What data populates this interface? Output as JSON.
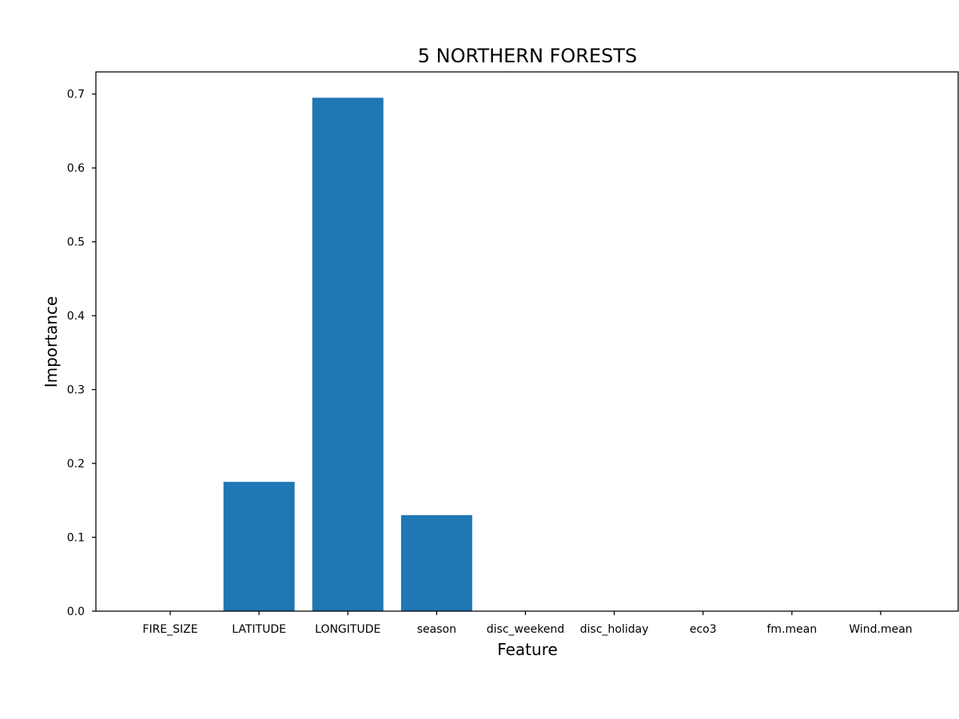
{
  "chart_data": {
    "type": "bar",
    "title": "5  NORTHERN FORESTS",
    "xlabel": "Feature",
    "ylabel": "Importance",
    "categories": [
      "FIRE_SIZE",
      "LATITUDE",
      "LONGITUDE",
      "season",
      "disc_weekend",
      "disc_holiday",
      "eco3",
      "fm.mean",
      "Wind.mean"
    ],
    "values": [
      0.0,
      0.175,
      0.695,
      0.13,
      0.0,
      0.0,
      0.0,
      0.0,
      0.0
    ],
    "ylim": [
      0,
      0.73
    ],
    "yticks": [
      0.0,
      0.1,
      0.2,
      0.3,
      0.4,
      0.5,
      0.6,
      0.7
    ],
    "ytick_labels": [
      "0.0",
      "0.1",
      "0.2",
      "0.3",
      "0.4",
      "0.5",
      "0.6",
      "0.7"
    ],
    "grid": false,
    "bar_color": "#1f77b4"
  }
}
